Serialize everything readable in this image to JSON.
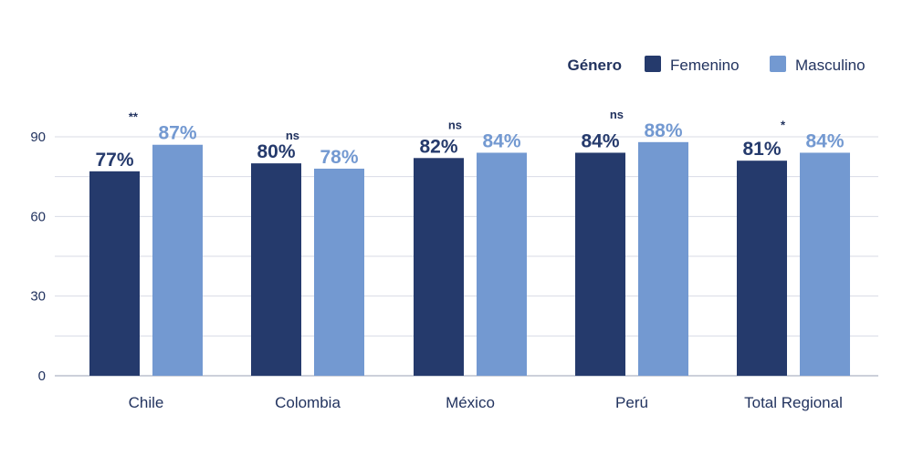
{
  "chart_data": {
    "type": "bar",
    "categories": [
      "Chile",
      "Colombia",
      "México",
      "Perú",
      "Total Regional"
    ],
    "series": [
      {
        "name": "Femenino",
        "values": [
          77,
          80,
          82,
          84,
          81
        ],
        "labels": [
          "77%",
          "80%",
          "82%",
          "84%",
          "81%"
        ],
        "color": "#253a6c"
      },
      {
        "name": "Masculino",
        "values": [
          87,
          78,
          84,
          88,
          84
        ],
        "labels": [
          "87%",
          "78%",
          "84%",
          "88%",
          "84%"
        ],
        "color": "#7399d1"
      }
    ],
    "significance": [
      "**",
      "ns",
      "ns",
      "ns",
      "*"
    ],
    "legend_title": "Género",
    "legend_position": "top-right",
    "y_ticks": [
      "0",
      "30",
      "60",
      "90"
    ],
    "y_tick_values": [
      0,
      30,
      60,
      90
    ],
    "ylim": [
      0,
      90
    ],
    "grid": true
  }
}
